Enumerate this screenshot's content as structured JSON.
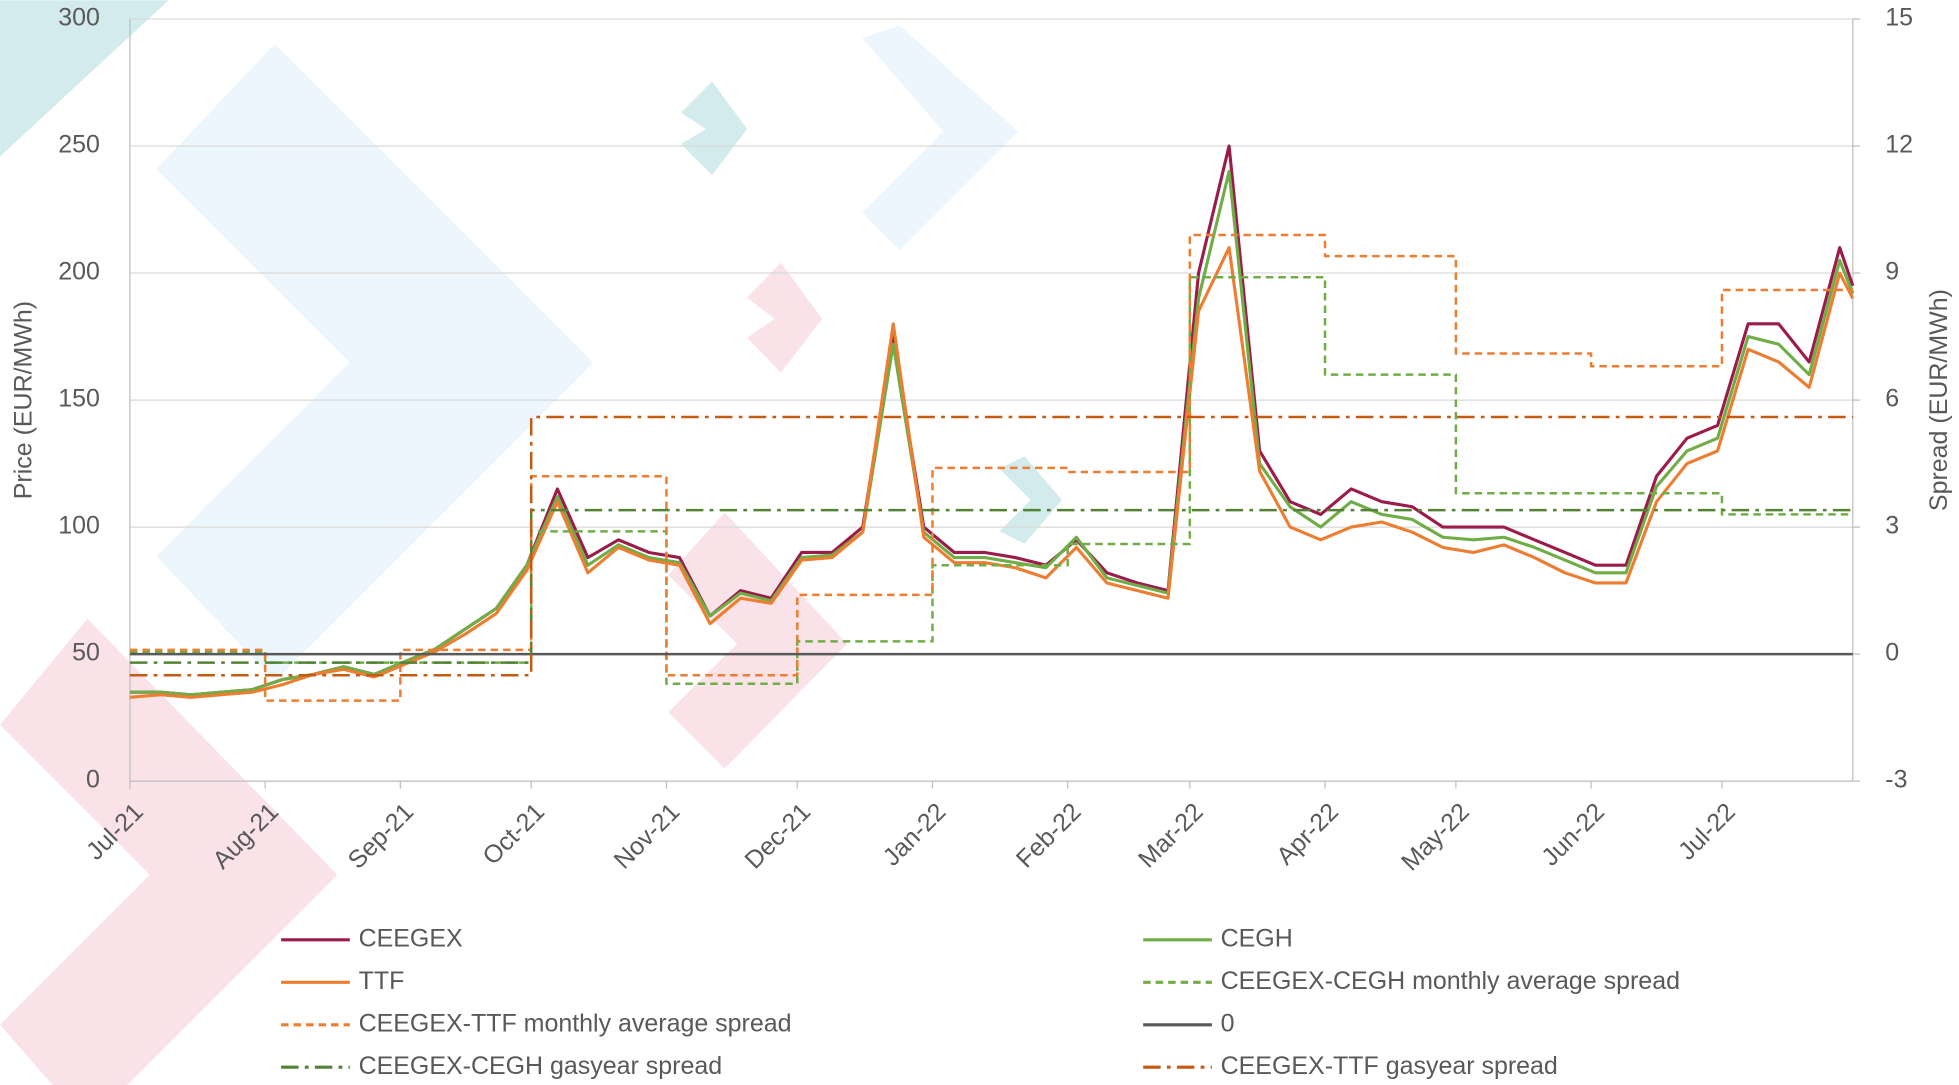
{
  "chart_data": {
    "type": "line",
    "y_label": "Price (EUR/MWh)",
    "y2_label": "Spread (EUR/MWh)",
    "xlim": [
      0,
      395
    ],
    "xticks": [
      {
        "value": 0,
        "label": "Jul-21"
      },
      {
        "value": 31,
        "label": "Aug-21"
      },
      {
        "value": 62,
        "label": "Sep-21"
      },
      {
        "value": 92,
        "label": "Oct-21"
      },
      {
        "value": 123,
        "label": "Nov-21"
      },
      {
        "value": 153,
        "label": "Dec-21"
      },
      {
        "value": 184,
        "label": "Jan-22"
      },
      {
        "value": 215,
        "label": "Feb-22"
      },
      {
        "value": 243,
        "label": "Mar-22"
      },
      {
        "value": 274,
        "label": "Apr-22"
      },
      {
        "value": 304,
        "label": "May-22"
      },
      {
        "value": 335,
        "label": "Jun-22"
      },
      {
        "value": 365,
        "label": "Jul-22"
      }
    ],
    "ylim": [
      0,
      300
    ],
    "yticks": [
      0,
      50,
      100,
      150,
      200,
      250,
      300
    ],
    "y2lim": [
      -3,
      15
    ],
    "y2ticks": [
      -3,
      0,
      3,
      6,
      9,
      12,
      15
    ],
    "grid": true,
    "x": [
      0,
      7,
      14,
      21,
      28,
      35,
      42,
      49,
      56,
      63,
      70,
      77,
      84,
      91,
      98,
      105,
      112,
      119,
      126,
      133,
      140,
      147,
      154,
      161,
      168,
      175,
      182,
      189,
      196,
      203,
      210,
      217,
      224,
      231,
      238,
      245,
      252,
      259,
      266,
      273,
      280,
      287,
      294,
      301,
      308,
      315,
      322,
      329,
      336,
      343,
      350,
      357,
      364,
      371,
      378,
      385,
      392,
      395
    ],
    "series": [
      {
        "name": "CEEGEX",
        "color": "#9b1b4b",
        "style": "solid",
        "values": [
          35,
          35,
          34,
          35,
          36,
          40,
          42,
          45,
          42,
          47,
          52,
          60,
          68,
          85,
          115,
          88,
          95,
          90,
          88,
          65,
          75,
          72,
          90,
          90,
          100,
          175,
          100,
          90,
          90,
          88,
          85,
          95,
          82,
          78,
          75,
          200,
          250,
          130,
          110,
          105,
          115,
          110,
          108,
          100,
          100,
          100,
          95,
          90,
          85,
          85,
          120,
          135,
          140,
          180,
          180,
          165,
          210,
          195
        ]
      },
      {
        "name": "CEGH",
        "color": "#70ad47",
        "style": "solid",
        "values": [
          35,
          35,
          34,
          35,
          36,
          40,
          42,
          45,
          42,
          47,
          52,
          60,
          68,
          85,
          112,
          85,
          93,
          88,
          86,
          65,
          74,
          71,
          88,
          89,
          98,
          172,
          98,
          88,
          88,
          86,
          84,
          96,
          80,
          77,
          74,
          190,
          240,
          125,
          108,
          100,
          110,
          105,
          103,
          96,
          95,
          96,
          92,
          87,
          82,
          82,
          116,
          130,
          135,
          175,
          172,
          160,
          205,
          192
        ]
      },
      {
        "name": "TTF",
        "color": "#ed7d31",
        "style": "solid",
        "values": [
          33,
          34,
          33,
          34,
          35,
          38,
          42,
          44,
          41,
          46,
          51,
          58,
          66,
          83,
          110,
          82,
          92,
          87,
          85,
          62,
          72,
          70,
          87,
          88,
          98,
          180,
          96,
          86,
          86,
          84,
          80,
          92,
          78,
          75,
          72,
          185,
          210,
          122,
          100,
          95,
          100,
          102,
          98,
          92,
          90,
          93,
          88,
          82,
          78,
          78,
          110,
          125,
          130,
          170,
          165,
          155,
          200,
          190
        ]
      },
      {
        "name": "CEEGEX-CEGH monthly average spread",
        "color": "#70ad47",
        "style": "dashed",
        "axis": "y2",
        "step": true,
        "x": [
          0,
          31,
          62,
          92,
          123,
          153,
          184,
          215,
          243,
          274,
          304,
          335,
          365
        ],
        "values": [
          0.05,
          -0.2,
          -0.2,
          2.9,
          -0.7,
          0.3,
          2.1,
          2.6,
          8.9,
          6.6,
          3.8,
          3.8,
          3.3
        ]
      },
      {
        "name": "CEEGEX-TTF monthly average spread",
        "color": "#ed7d31",
        "style": "dashed",
        "axis": "y2",
        "step": true,
        "x": [
          0,
          31,
          62,
          92,
          123,
          153,
          184,
          215,
          243,
          274,
          304,
          335,
          365
        ],
        "values": [
          0.1,
          -1.1,
          0.1,
          4.2,
          -0.5,
          1.4,
          4.4,
          4.3,
          9.9,
          9.4,
          7.1,
          6.8,
          8.6
        ]
      },
      {
        "name": "0",
        "color": "#595959",
        "style": "solid",
        "axis": "y2",
        "step": true,
        "x": [
          0
        ],
        "values": [
          0
        ]
      },
      {
        "name": "CEEGEX-CEGH gasyear spread",
        "color": "#548235",
        "style": "dashdot",
        "axis": "y2",
        "step": true,
        "x": [
          0,
          92
        ],
        "values": [
          -0.2,
          3.4
        ]
      },
      {
        "name": "CEEGEX-TTF gasyear spread",
        "color": "#c55a11",
        "style": "dashdot",
        "axis": "y2",
        "step": true,
        "x": [
          0,
          92
        ],
        "values": [
          -0.5,
          5.6
        ]
      }
    ]
  }
}
